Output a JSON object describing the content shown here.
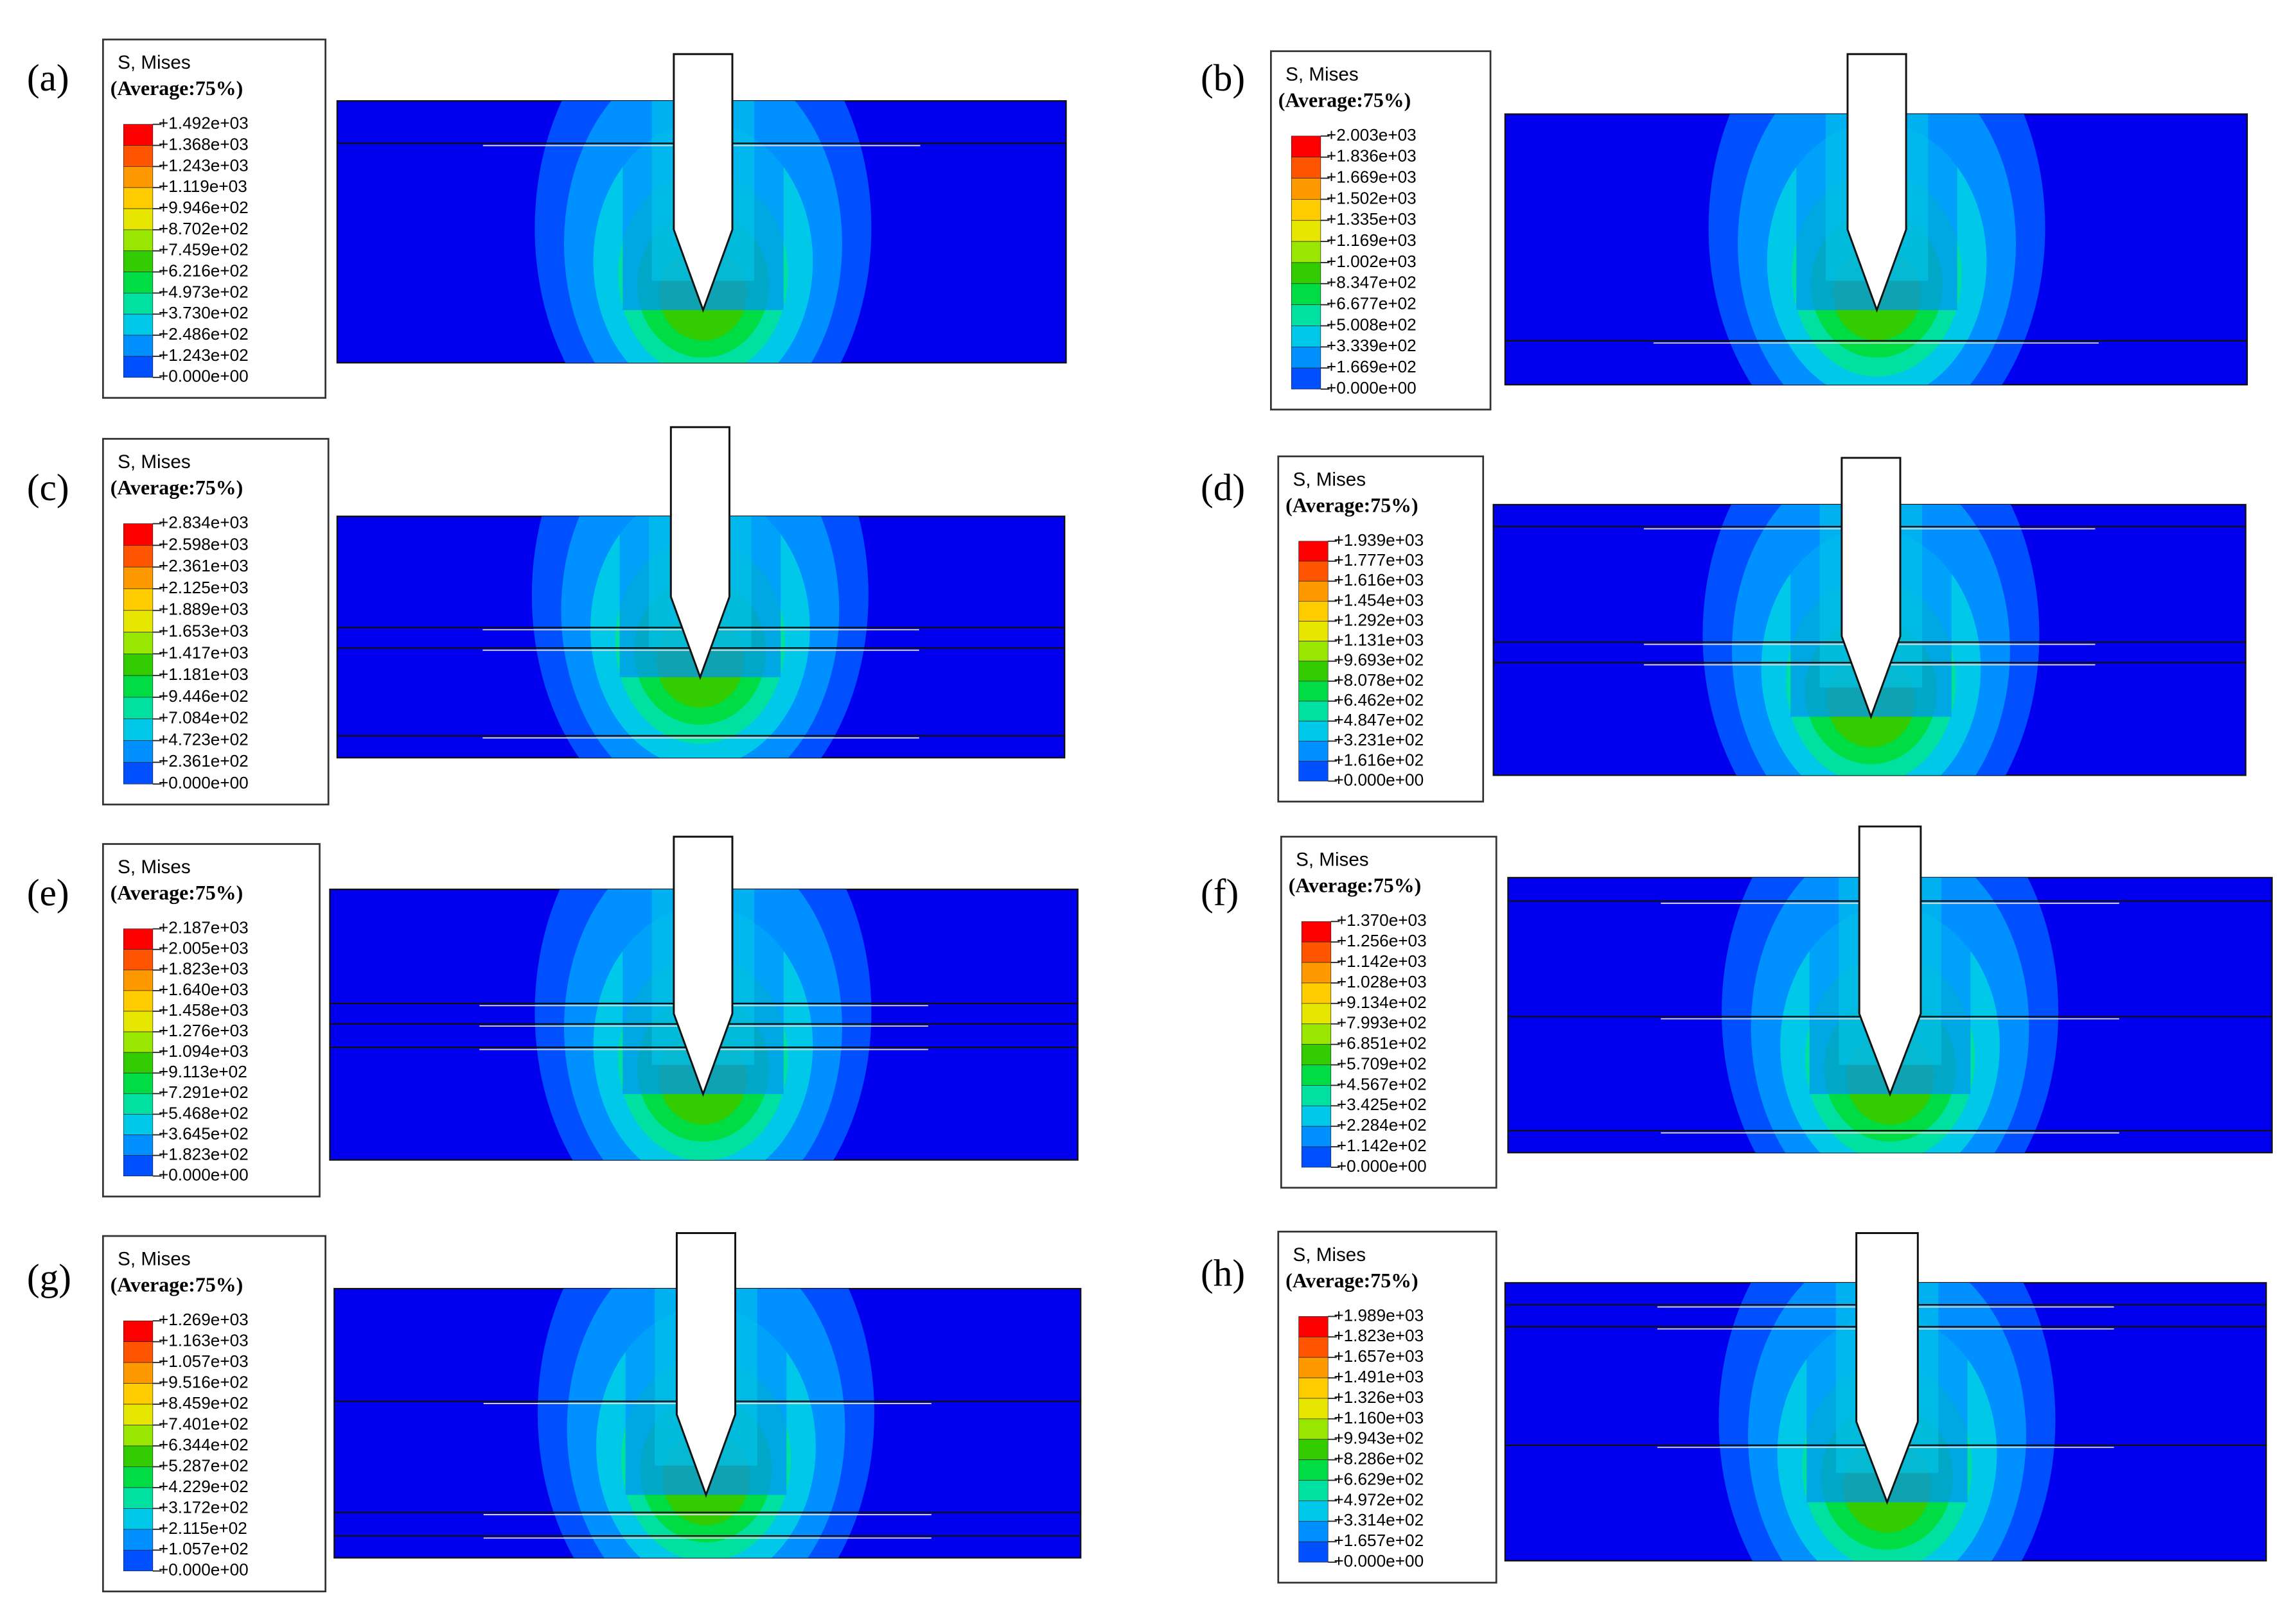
{
  "panels": [
    {
      "label": "(a)",
      "legend": {
        "title": "S, Mises",
        "subtitle": "(Average:75%)",
        "ticks": [
          "+1.492e+03",
          "+1.368e+03",
          "+1.243e+03",
          "+1.119e+03",
          "+9.946e+02",
          "+8.702e+02",
          "+7.459e+02",
          "+6.216e+02",
          "+4.973e+02",
          "+3.730e+02",
          "+2.486e+02",
          "+1.243e+02",
          "+0.000e+00"
        ]
      }
    },
    {
      "label": "(b)",
      "legend": {
        "title": "S, Mises",
        "subtitle": "(Average:75%)",
        "ticks": [
          "+2.003e+03",
          "+1.836e+03",
          "+1.669e+03",
          "+1.502e+03",
          "+1.335e+03",
          "+1.169e+03",
          "+1.002e+03",
          "+8.347e+02",
          "+6.677e+02",
          "+5.008e+02",
          "+3.339e+02",
          "+1.669e+02",
          "+0.000e+00"
        ]
      }
    },
    {
      "label": "(c)",
      "legend": {
        "title": "S, Mises",
        "subtitle": "(Average:75%)",
        "ticks": [
          "+2.834e+03",
          "+2.598e+03",
          "+2.361e+03",
          "+2.125e+03",
          "+1.889e+03",
          "+1.653e+03",
          "+1.417e+03",
          "+1.181e+03",
          "+9.446e+02",
          "+7.084e+02",
          "+4.723e+02",
          "+2.361e+02",
          "+0.000e+00"
        ]
      }
    },
    {
      "label": "(d)",
      "legend": {
        "title": "S, Mises",
        "subtitle": "(Average:75%)",
        "ticks": [
          "+1.939e+03",
          "+1.777e+03",
          "+1.616e+03",
          "+1.454e+03",
          "+1.292e+03",
          "+1.131e+03",
          "+9.693e+02",
          "+8.078e+02",
          "+6.462e+02",
          "+4.847e+02",
          "+3.231e+02",
          "+1.616e+02",
          "+0.000e+00"
        ]
      }
    },
    {
      "label": "(e)",
      "legend": {
        "title": "S, Mises",
        "subtitle": "(Average:75%)",
        "ticks": [
          "+2.187e+03",
          "+2.005e+03",
          "+1.823e+03",
          "+1.640e+03",
          "+1.458e+03",
          "+1.276e+03",
          "+1.094e+03",
          "+9.113e+02",
          "+7.291e+02",
          "+5.468e+02",
          "+3.645e+02",
          "+1.823e+02",
          "+0.000e+00"
        ]
      }
    },
    {
      "label": "(f)",
      "legend": {
        "title": "S, Mises",
        "subtitle": "(Average:75%)",
        "ticks": [
          "+1.370e+03",
          "+1.256e+03",
          "+1.142e+03",
          "+1.028e+03",
          "+9.134e+02",
          "+7.993e+02",
          "+6.851e+02",
          "+5.709e+02",
          "+4.567e+02",
          "+3.425e+02",
          "+2.284e+02",
          "+1.142e+02",
          "+0.000e+00"
        ]
      }
    },
    {
      "label": "(g)",
      "legend": {
        "title": "S, Mises",
        "subtitle": "(Average:75%)",
        "ticks": [
          "+1.269e+03",
          "+1.163e+03",
          "+1.057e+03",
          "+9.516e+02",
          "+8.459e+02",
          "+7.401e+02",
          "+6.344e+02",
          "+5.287e+02",
          "+4.229e+02",
          "+3.172e+02",
          "+2.115e+02",
          "+1.057e+02",
          "+0.000e+00"
        ]
      }
    },
    {
      "label": "(h)",
      "legend": {
        "title": "S, Mises",
        "subtitle": "(Average:75%)",
        "ticks": [
          "+1.989e+03",
          "+1.823e+03",
          "+1.657e+03",
          "+1.491e+03",
          "+1.326e+03",
          "+1.160e+03",
          "+9.943e+02",
          "+8.286e+02",
          "+6.629e+02",
          "+4.972e+02",
          "+3.314e+02",
          "+1.657e+02",
          "+0.000e+00"
        ]
      }
    }
  ]
}
